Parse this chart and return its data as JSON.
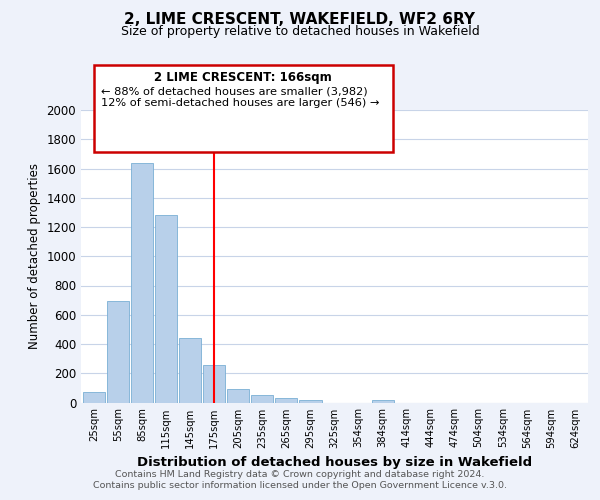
{
  "title": "2, LIME CRESCENT, WAKEFIELD, WF2 6RY",
  "subtitle": "Size of property relative to detached houses in Wakefield",
  "xlabel": "Distribution of detached houses by size in Wakefield",
  "ylabel": "Number of detached properties",
  "bar_labels": [
    "25sqm",
    "55sqm",
    "85sqm",
    "115sqm",
    "145sqm",
    "175sqm",
    "205sqm",
    "235sqm",
    "265sqm",
    "295sqm",
    "325sqm",
    "354sqm",
    "384sqm",
    "414sqm",
    "444sqm",
    "474sqm",
    "504sqm",
    "534sqm",
    "564sqm",
    "594sqm",
    "624sqm"
  ],
  "bar_values": [
    70,
    695,
    1635,
    1285,
    440,
    255,
    90,
    50,
    30,
    20,
    0,
    0,
    20,
    0,
    0,
    0,
    0,
    0,
    0,
    0,
    0
  ],
  "bar_color": "#b8d0ea",
  "bar_edge_color": "#7aafd4",
  "ylim": [
    0,
    2000
  ],
  "yticks": [
    0,
    200,
    400,
    600,
    800,
    1000,
    1200,
    1400,
    1600,
    1800,
    2000
  ],
  "red_line_index": 5,
  "annotation_title": "2 LIME CRESCENT: 166sqm",
  "annotation_line1": "← 88% of detached houses are smaller (3,982)",
  "annotation_line2": "12% of semi-detached houses are larger (546) →",
  "annotation_box_color": "#ffffff",
  "annotation_box_edge": "#cc0000",
  "footer1": "Contains HM Land Registry data © Crown copyright and database right 2024.",
  "footer2": "Contains public sector information licensed under the Open Government Licence v.3.0.",
  "bg_color": "#eef2fa",
  "plot_bg_color": "#ffffff",
  "grid_color": "#c8d4e8"
}
